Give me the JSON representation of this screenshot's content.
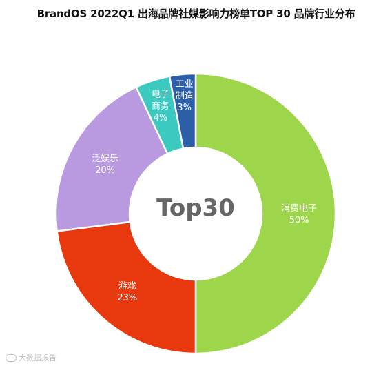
{
  "title": "BrandOS 2022Q1 出海品牌社媒影响力榜单TOP 30 品牌行业分布",
  "watermark": "大数据报告",
  "chart_data": {
    "type": "pie",
    "donut": true,
    "center_label": "Top30",
    "slices": [
      {
        "label": "消费电子",
        "value": 50,
        "value_label": "50%",
        "color": "#9DD64A"
      },
      {
        "label": "游戏",
        "value": 23,
        "value_label": "23%",
        "color": "#E8380D"
      },
      {
        "label": "泛娱乐",
        "value": 20,
        "value_label": "20%",
        "color": "#B999E0"
      },
      {
        "label": "电子商务",
        "value": 4,
        "value_label": "4%",
        "color": "#3CC9C0"
      },
      {
        "label": "工业制造",
        "value": 3,
        "value_label": "3%",
        "color": "#2D5FA8"
      }
    ],
    "label_lines": [
      [
        "消费电子",
        "50%"
      ],
      [
        "游戏",
        "23%"
      ],
      [
        "泛娱乐",
        "20%"
      ],
      [
        "电子",
        "商务",
        "4%"
      ],
      [
        "工业",
        "制造",
        "3%"
      ]
    ]
  }
}
